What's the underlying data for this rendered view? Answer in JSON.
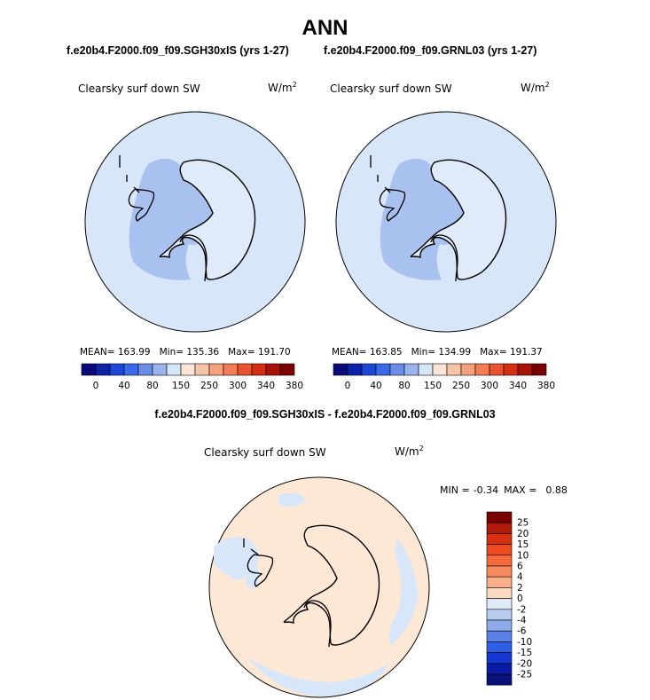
{
  "title": "ANN",
  "panels": [
    {
      "run": "f.e20b4.F2000.f09_f09.SGH30xIS (yrs 1-27)",
      "variable": "Clearsky surf down SW",
      "units": "W/m",
      "units_exp": "2",
      "mean": "MEAN= 163.99",
      "min": "Min= 135.36",
      "max": "Max= 191.70"
    },
    {
      "run": "f.e20b4.F2000.f09_f09.GRNL03 (yrs 1-27)",
      "variable": "Clearsky surf down SW",
      "units": "W/m",
      "units_exp": "2",
      "mean": "MEAN= 163.85",
      "min": "Min= 134.99",
      "max": "Max= 191.37"
    }
  ],
  "colorbar_abs": {
    "colors": [
      "#0a0a78",
      "#0f23a8",
      "#1e46d7",
      "#3a6ae8",
      "#6a8ee8",
      "#9bb4ee",
      "#d5e6f8",
      "#fde6d8",
      "#f8c4a8",
      "#f4a07c",
      "#f17c56",
      "#e95430",
      "#d42e12",
      "#a81208",
      "#7a0000"
    ],
    "labels": [
      "0",
      "40",
      "80",
      "150",
      "250",
      "300",
      "340",
      "380"
    ]
  },
  "difference": {
    "title": "f.e20b4.F2000.f09_f09.SGH30xIS - f.e20b4.F2000.f09_f09.GRNL03",
    "variable": "Clearsky surf down SW",
    "units": "W/m",
    "units_exp": "2",
    "min_label": "MIN =",
    "min_value": "-0.34",
    "max_label": "MAX =",
    "max_value": "0.88"
  },
  "colorbar_diff": {
    "colors": [
      "#7a0000",
      "#b01a08",
      "#d8300e",
      "#ee4a22",
      "#f56a3c",
      "#f88c5e",
      "#f9b08a",
      "#fdd9c2",
      "#dfe9f8",
      "#b7cbef",
      "#8eaae8",
      "#5a82e6",
      "#2e5ee4",
      "#1638d2",
      "#0a1ca4",
      "#08127a"
    ],
    "labels": [
      "25",
      "20",
      "15",
      "10",
      "6",
      "4",
      "2",
      "0",
      "-2",
      "-4",
      "-6",
      "-10",
      "-15",
      "-20",
      "-25"
    ]
  },
  "map_colors": {
    "ocean_abs": "#d7e6f8",
    "west_antarctica": "#a9c1ee",
    "east_antarctica": "#dfebf9",
    "diff_positive": "#fde8d6",
    "diff_negative": "#d7e6f8",
    "coast": "#000000"
  }
}
